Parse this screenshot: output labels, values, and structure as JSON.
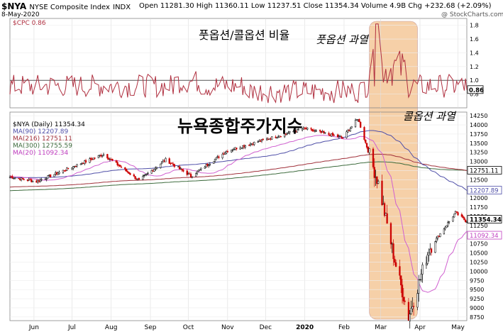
{
  "header": {
    "symbol": "$NYA",
    "name": "NYSE Composite Index",
    "exchange": "INDX",
    "date": "8-May-2020",
    "ohlc": "Open 11281.30  High 11360.11  Low 11237.51  Close 11354.34  Volume 4.9B  Chg +232.68 (+2.09%)",
    "watermark": "@ StockCharts.com"
  },
  "annotations": {
    "pc_ratio": "풋옵션/콜옵션 비율",
    "put_excess": "풋옵션 과열",
    "call_excess": "콜옵션 과열",
    "main_title": "뉴욕종합주가지수"
  },
  "colors": {
    "price_up": "#000000",
    "price_down": "#cc0000",
    "ma90": "#4f4fa8",
    "ma216": "#a0303a",
    "ma300": "#3d6b3d",
    "ma20": "#d060d0",
    "cpc": "#b03040",
    "highlight": "#f5c89a"
  },
  "chart_data": [
    {
      "type": "line",
      "legend": [
        "$CPC 0.86"
      ],
      "series": [
        {
          "name": "$CPC",
          "last": 0.86
        }
      ],
      "ylim": [
        0.6,
        1.9
      ],
      "yticks": [
        "1.8",
        "1.6",
        "1.4",
        "1.2",
        "1.0",
        "0.8"
      ],
      "reference_line": 1.0,
      "last_label": "0.86",
      "notes": "put/call ratio daily values, peak ~1.8 in early March 2020"
    },
    {
      "type": "line",
      "legend": [
        "$NYA (Daily) 11354.34",
        "MA(90) 12207.89",
        "MA(216) 12751.11",
        "MA(300) 12755.59",
        "MA(20) 11092.34"
      ],
      "series": [
        {
          "name": "$NYA (Daily)",
          "last": 11354.34
        },
        {
          "name": "MA(90)",
          "last": 12207.89
        },
        {
          "name": "MA(216)",
          "last": 12751.11
        },
        {
          "name": "MA(300)",
          "last": 12755.59
        },
        {
          "name": "MA(20)",
          "last": 11092.34
        }
      ],
      "ylim": [
        8650,
        14350
      ],
      "yticks": [
        "14250",
        "14000",
        "13750",
        "13500",
        "13250",
        "13000",
        "12750",
        "12500",
        "12250",
        "12000",
        "11750",
        "11500",
        "11250",
        "11000",
        "10750",
        "10500",
        "10250",
        "10000",
        "9750",
        "9500",
        "9250",
        "9000",
        "8750"
      ],
      "xticks": [
        "Jun",
        "Jul",
        "Aug",
        "Sep",
        "Oct",
        "Nov",
        "Dec",
        "2020",
        "Feb",
        "Mar",
        "Apr",
        "May"
      ],
      "value_labels": [
        "12751.11",
        "12207.89",
        "11354.34",
        "11092.34"
      ],
      "key_points": [
        {
          "x": "2019-05-13",
          "y": 12580
        },
        {
          "x": "2019-06-03",
          "y": 12450
        },
        {
          "x": "2019-07-26",
          "y": 13200
        },
        {
          "x": "2019-08-23",
          "y": 12480
        },
        {
          "x": "2019-09-13",
          "y": 13050
        },
        {
          "x": "2019-10-03",
          "y": 12600
        },
        {
          "x": "2019-11-01",
          "y": 13300
        },
        {
          "x": "2019-12-31",
          "y": 13900
        },
        {
          "x": "2020-01-31",
          "y": 13650
        },
        {
          "x": "2020-02-12",
          "y": 14180
        },
        {
          "x": "2020-02-28",
          "y": 12400
        },
        {
          "x": "2020-03-12",
          "y": 10300
        },
        {
          "x": "2020-03-23",
          "y": 8750
        },
        {
          "x": "2020-04-08",
          "y": 10600
        },
        {
          "x": "2020-04-29",
          "y": 11600
        },
        {
          "x": "2020-05-08",
          "y": 11354
        }
      ]
    }
  ]
}
